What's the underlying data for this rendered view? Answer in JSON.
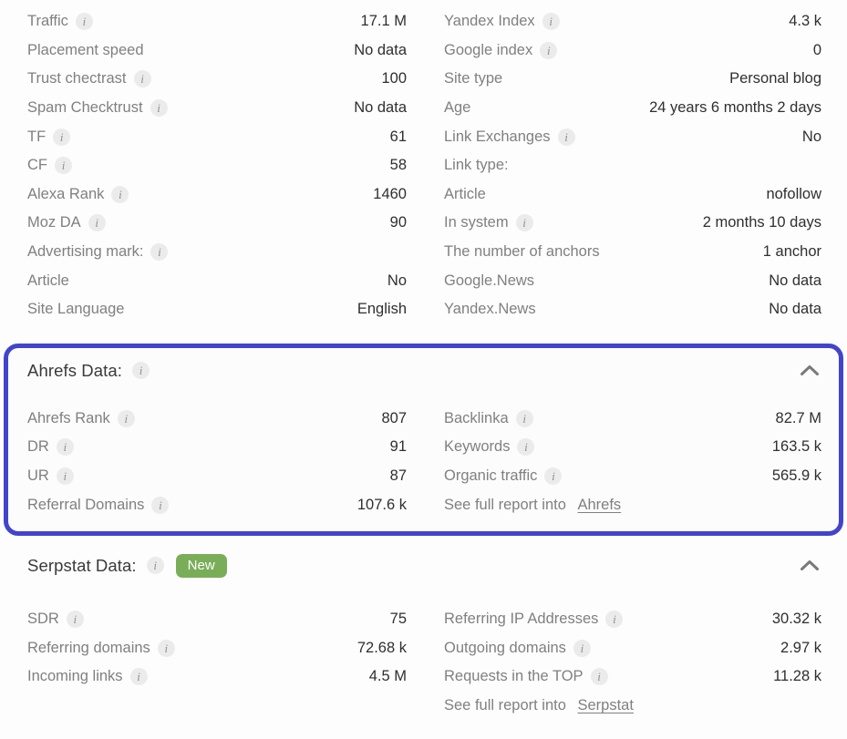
{
  "colors": {
    "accent_border": "#4244cc",
    "badge_bg": "#7aad58",
    "badge_fg": "#ffffff",
    "label": "#808080",
    "value": "#2f2f2f",
    "header": "#3a3a3a",
    "info_bg": "#ebebeb",
    "info_fg": "#8f8f8f",
    "chevron": "#7a7a7a"
  },
  "icons": {
    "info": "i",
    "collapse": "chevron-up"
  },
  "general": {
    "left_rows": [
      {
        "label": "Traffic",
        "info": true,
        "value": "17.1 M"
      },
      {
        "label": "Placement speed",
        "info": false,
        "value": "No data"
      },
      {
        "label": "Trust chectrast",
        "info": true,
        "value": "100"
      },
      {
        "label": "Spam Checktrust",
        "info": true,
        "value": "No data"
      },
      {
        "label": "TF",
        "info": true,
        "value": "61"
      },
      {
        "label": "CF",
        "info": true,
        "value": "58"
      },
      {
        "label": "Alexa Rank",
        "info": true,
        "value": "1460"
      },
      {
        "label": "Moz DA",
        "info": true,
        "value": "90"
      },
      {
        "label": "Advertising mark:",
        "info": true,
        "value": ""
      },
      {
        "label": "Article",
        "info": false,
        "value": "No"
      },
      {
        "label": "Site Language",
        "info": false,
        "value": "English"
      }
    ],
    "right_rows": [
      {
        "label": "Yandex Index",
        "info": true,
        "value": "4.3 k"
      },
      {
        "label": "Google index",
        "info": true,
        "value": "0"
      },
      {
        "label": "Site type",
        "info": false,
        "value": "Personal blog"
      },
      {
        "label": "Age",
        "info": false,
        "value": "24 years 6 months 2 days"
      },
      {
        "label": "Link Exchanges",
        "info": true,
        "value": "No"
      },
      {
        "label": "Link type:",
        "info": false,
        "value": ""
      },
      {
        "label": "Article",
        "info": false,
        "value": "nofollow"
      },
      {
        "label": "In system",
        "info": true,
        "value": "2 months 10 days"
      },
      {
        "label": "The number of anchors",
        "info": false,
        "value": "1 anchor"
      },
      {
        "label": "Google.News",
        "info": false,
        "value": "No data"
      },
      {
        "label": "Yandex.News",
        "info": false,
        "value": "No data"
      }
    ]
  },
  "ahrefs": {
    "title": "Ahrefs Data:",
    "title_info": true,
    "left_rows": [
      {
        "label": "Ahrefs Rank",
        "info": true,
        "value": "807"
      },
      {
        "label": "DR",
        "info": true,
        "value": "91"
      },
      {
        "label": "UR",
        "info": true,
        "value": "87"
      },
      {
        "label": "Referral Domains",
        "info": true,
        "value": "107.6 k"
      }
    ],
    "right_rows": [
      {
        "label": "Backlinka",
        "info": true,
        "value": "82.7 M"
      },
      {
        "label": "Keywords",
        "info": true,
        "value": "163.5 k"
      },
      {
        "label": "Organic traffic",
        "info": true,
        "value": "565.9 k"
      },
      {
        "report": true,
        "prefix": "See full report into",
        "link": "Ahrefs",
        "link_name": "ahrefs-report-link"
      }
    ]
  },
  "serpstat": {
    "title": "Serpstat Data:",
    "title_info": true,
    "badge": "New",
    "left_rows": [
      {
        "label": "SDR",
        "info": true,
        "value": "75"
      },
      {
        "label": "Referring domains",
        "info": true,
        "value": "72.68 k"
      },
      {
        "label": "Incoming links",
        "info": true,
        "value": "4.5 M"
      }
    ],
    "right_rows": [
      {
        "label": "Referring IP Addresses",
        "info": true,
        "value": "30.32 k"
      },
      {
        "label": "Outgoing domains",
        "info": true,
        "value": "2.97 k"
      },
      {
        "label": "Requests in the TOP",
        "info": true,
        "value": "11.28 k"
      },
      {
        "report": true,
        "prefix": "See full report into",
        "link": "Serpstat",
        "link_name": "serpstat-report-link"
      }
    ]
  }
}
